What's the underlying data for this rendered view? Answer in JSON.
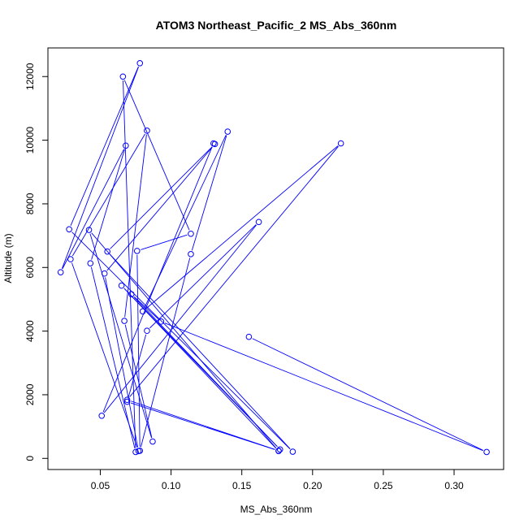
{
  "chart_data": {
    "type": "line",
    "title": "ATOM3 Northeast_Pacific_2 MS_Abs_360nm",
    "xlabel": "MS_Abs_360nm",
    "ylabel": "Altitude (m)",
    "xlim": [
      0.013,
      0.335
    ],
    "ylim": [
      -350,
      12900
    ],
    "xticks": [
      0.05,
      0.1,
      0.15,
      0.2,
      0.25,
      0.3
    ],
    "xtick_labels": [
      "0.05",
      "0.10",
      "0.15",
      "0.20",
      "0.25",
      "0.30"
    ],
    "yticks": [
      0,
      2000,
      4000,
      6000,
      8000,
      10000,
      12000
    ],
    "ytick_labels": [
      "0",
      "2000",
      "4000",
      "6000",
      "8000",
      "10000",
      "12000"
    ],
    "grid": false,
    "marker": "open-circle",
    "series": [
      {
        "color": "#0000ff",
        "points": [
          {
            "x": 0.155,
            "y": 3820
          },
          {
            "x": 0.323,
            "y": 200
          },
          {
            "x": 0.093,
            "y": 4300
          },
          {
            "x": 0.072,
            "y": 5160
          },
          {
            "x": 0.177,
            "y": 280
          },
          {
            "x": 0.065,
            "y": 5430
          },
          {
            "x": 0.176,
            "y": 230
          },
          {
            "x": 0.042,
            "y": 7180
          },
          {
            "x": 0.087,
            "y": 530
          },
          {
            "x": 0.067,
            "y": 4320
          },
          {
            "x": 0.083,
            "y": 10300
          },
          {
            "x": 0.029,
            "y": 6260
          },
          {
            "x": 0.077,
            "y": 230
          },
          {
            "x": 0.053,
            "y": 5810
          },
          {
            "x": 0.131,
            "y": 9880
          },
          {
            "x": 0.055,
            "y": 6500
          },
          {
            "x": 0.186,
            "y": 210
          },
          {
            "x": 0.028,
            "y": 7200
          },
          {
            "x": 0.078,
            "y": 12420
          },
          {
            "x": 0.022,
            "y": 5850
          },
          {
            "x": 0.068,
            "y": 9830
          },
          {
            "x": 0.043,
            "y": 6130
          },
          {
            "x": 0.075,
            "y": 200
          },
          {
            "x": 0.066,
            "y": 12000
          },
          {
            "x": 0.114,
            "y": 7060
          },
          {
            "x": 0.076,
            "y": 6520
          },
          {
            "x": 0.078,
            "y": 240
          },
          {
            "x": 0.114,
            "y": 6420
          },
          {
            "x": 0.14,
            "y": 10270
          },
          {
            "x": 0.08,
            "y": 4620
          },
          {
            "x": 0.22,
            "y": 9900
          },
          {
            "x": 0.069,
            "y": 1840
          },
          {
            "x": 0.176,
            "y": 240
          },
          {
            "x": 0.069,
            "y": 1780
          },
          {
            "x": 0.083,
            "y": 4010
          },
          {
            "x": 0.162,
            "y": 7430
          },
          {
            "x": 0.051,
            "y": 1340
          },
          {
            "x": 0.13,
            "y": 9900
          }
        ]
      }
    ]
  }
}
